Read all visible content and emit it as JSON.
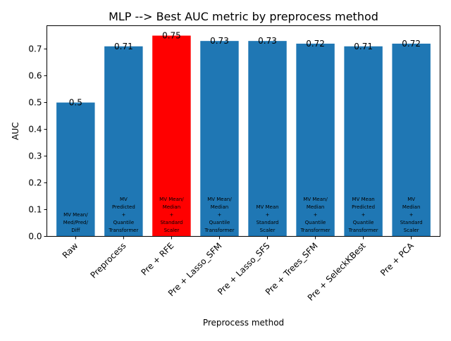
{
  "chart_data": {
    "type": "bar",
    "title": "MLP --> Best AUC metric by preprocess method",
    "xlabel": "Preprocess method",
    "ylabel": "AUC",
    "ylim": [
      0,
      0.787
    ],
    "yticks": [
      "0.0",
      "0.1",
      "0.2",
      "0.3",
      "0.4",
      "0.5",
      "0.6",
      "0.7"
    ],
    "grid": false,
    "categories": [
      "Raw",
      "Preprocess",
      "Pre + RFE",
      "Pre + Lasso_SFM",
      "Pre + Lasso_SFS",
      "Pre + Trees_SFM",
      "Pre + SeleckKBest",
      "Pre + PCA"
    ],
    "values": [
      0.5,
      0.71,
      0.75,
      0.73,
      0.73,
      0.72,
      0.71,
      0.72
    ],
    "value_labels": [
      "0.5",
      "0.71",
      "0.75",
      "0.73",
      "0.73",
      "0.72",
      "0.71",
      "0.72"
    ],
    "bar_colors": [
      "#1f77b4",
      "#1f77b4",
      "#ff0000",
      "#1f77b4",
      "#1f77b4",
      "#1f77b4",
      "#1f77b4",
      "#1f77b4"
    ],
    "bar_annotations": [
      [
        "MV Mean/",
        "Med/Pred/",
        "Diff"
      ],
      [
        "MV",
        "Predicted",
        "+",
        "Quantile",
        "Transformer"
      ],
      [
        "MV Mean/",
        "Median",
        "+",
        "Standard",
        "Scaler"
      ],
      [
        "MV Mean/",
        "Median",
        "+",
        "Quantile",
        "Transformer"
      ],
      [
        "MV Mean",
        "+",
        "Standard",
        "Scaler"
      ],
      [
        "MV Mean/",
        "Median",
        "+",
        "Quantile",
        "Transformer"
      ],
      [
        "MV Mean",
        "Predicted",
        "+",
        "Quantile",
        "Transformer"
      ],
      [
        "MV",
        "Median",
        "+",
        "Standard",
        "Scaler"
      ]
    ]
  }
}
